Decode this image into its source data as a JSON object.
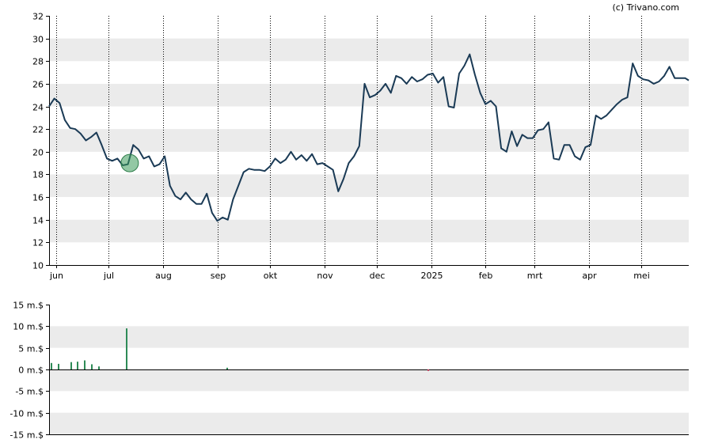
{
  "credit": "(c) Trivano.com",
  "chart_data": [
    {
      "type": "line",
      "title": "",
      "xlabel": "",
      "ylabel": "",
      "ylim": [
        10,
        32
      ],
      "yticks": [
        10,
        12,
        14,
        16,
        18,
        20,
        22,
        24,
        26,
        28,
        30,
        32
      ],
      "x_tick_labels": [
        "jun",
        "jul",
        "aug",
        "sep",
        "okt",
        "nov",
        "dec",
        "2025",
        "feb",
        "mrt",
        "apr",
        "mei"
      ],
      "x_tick_dates": [
        "2024-06-01",
        "2024-07-01",
        "2024-08-01",
        "2024-09-01",
        "2024-10-01",
        "2024-11-01",
        "2024-12-01",
        "2025-01-01",
        "2025-02-01",
        "2025-03-01",
        "2025-04-01",
        "2025-05-01"
      ],
      "x_range": [
        "2024-05-28",
        "2025-05-28"
      ],
      "grid": "horizontal bands with dotted vertical month lines",
      "line_color": "#1a3a55",
      "series": [
        {
          "dates": [
            "2024-05-28",
            "2024-05-31",
            "2024-06-03",
            "2024-06-06",
            "2024-06-09",
            "2024-06-12",
            "2024-06-15",
            "2024-06-18",
            "2024-06-21",
            "2024-06-24",
            "2024-06-27",
            "2024-06-30",
            "2024-07-03",
            "2024-07-06",
            "2024-07-09",
            "2024-07-12",
            "2024-07-15",
            "2024-07-18",
            "2024-07-21",
            "2024-07-24",
            "2024-07-27",
            "2024-07-30",
            "2024-08-02",
            "2024-08-05",
            "2024-08-08",
            "2024-08-11",
            "2024-08-14",
            "2024-08-17",
            "2024-08-20",
            "2024-08-23",
            "2024-08-26",
            "2024-08-29",
            "2024-09-01",
            "2024-09-04",
            "2024-09-07",
            "2024-09-10",
            "2024-09-13",
            "2024-09-16",
            "2024-09-19",
            "2024-09-22",
            "2024-09-25",
            "2024-09-28",
            "2024-10-01",
            "2024-10-04",
            "2024-10-07",
            "2024-10-10",
            "2024-10-13",
            "2024-10-16",
            "2024-10-19",
            "2024-10-22",
            "2024-10-25",
            "2024-10-28",
            "2024-10-31",
            "2024-11-03",
            "2024-11-06",
            "2024-11-09",
            "2024-11-12",
            "2024-11-15",
            "2024-11-18",
            "2024-11-21",
            "2024-11-24",
            "2024-11-27",
            "2024-11-30",
            "2024-12-03",
            "2024-12-06",
            "2024-12-09",
            "2024-12-12",
            "2024-12-15",
            "2024-12-18",
            "2024-12-21",
            "2024-12-24",
            "2024-12-27",
            "2024-12-30",
            "2025-01-02",
            "2025-01-05",
            "2025-01-08",
            "2025-01-11",
            "2025-01-14",
            "2025-01-17",
            "2025-01-20",
            "2025-01-23",
            "2025-01-26",
            "2025-01-29",
            "2025-02-01",
            "2025-02-04",
            "2025-02-07",
            "2025-02-10",
            "2025-02-13",
            "2025-02-16",
            "2025-02-19",
            "2025-02-22",
            "2025-02-25",
            "2025-02-28",
            "2025-03-03",
            "2025-03-06",
            "2025-03-09",
            "2025-03-12",
            "2025-03-15",
            "2025-03-18",
            "2025-03-21",
            "2025-03-24",
            "2025-03-27",
            "2025-03-30",
            "2025-04-02",
            "2025-04-05",
            "2025-04-08",
            "2025-04-11",
            "2025-04-14",
            "2025-04-17",
            "2025-04-20",
            "2025-04-23",
            "2025-04-26",
            "2025-04-29",
            "2025-05-02",
            "2025-05-05",
            "2025-05-08",
            "2025-05-11",
            "2025-05-14",
            "2025-05-17",
            "2025-05-20",
            "2025-05-23",
            "2025-05-26",
            "2025-05-28"
          ],
          "values": [
            24.0,
            24.7,
            24.3,
            22.8,
            22.1,
            22.0,
            21.6,
            21.0,
            21.3,
            21.7,
            20.6,
            19.4,
            19.2,
            19.4,
            18.8,
            18.9,
            20.6,
            20.2,
            19.4,
            19.6,
            18.7,
            18.9,
            19.6,
            17.0,
            16.1,
            15.8,
            16.4,
            15.8,
            15.4,
            15.4,
            16.3,
            14.6,
            13.9,
            14.2,
            14.0,
            15.8,
            17.0,
            18.2,
            18.5,
            18.4,
            18.4,
            18.3,
            18.7,
            19.4,
            19.0,
            19.3,
            20.0,
            19.3,
            19.7,
            19.2,
            19.8,
            18.9,
            19.0,
            18.7,
            18.4,
            16.5,
            17.6,
            19.0,
            19.6,
            20.5,
            26.0,
            24.8,
            25.0,
            25.4,
            26.0,
            25.2,
            26.7,
            26.5,
            26.0,
            26.6,
            26.2,
            26.4,
            26.8,
            26.9,
            26.1,
            26.6,
            24.0,
            23.9,
            26.9,
            27.6,
            28.6,
            26.8,
            25.2,
            24.2,
            24.5,
            24.0,
            20.3,
            20.0,
            21.8,
            20.5,
            21.5,
            21.2,
            21.2,
            21.9,
            22.0,
            22.6,
            19.4,
            19.3,
            20.6,
            20.6,
            19.6,
            19.3,
            20.4,
            20.6,
            23.2,
            22.9,
            23.2,
            23.7,
            24.2,
            24.6,
            24.8,
            27.8,
            26.7,
            26.4,
            26.3,
            26.0,
            26.2,
            26.7,
            27.5,
            26.5,
            26.5,
            26.5,
            26.3
          ]
        }
      ],
      "annotations": [
        {
          "type": "circle-highlight",
          "date": "2024-07-13",
          "value": 19.0
        }
      ]
    },
    {
      "type": "bar",
      "title": "",
      "xlabel": "",
      "ylabel": "",
      "ylim": [
        -15,
        15
      ],
      "yticks": [
        -15,
        -10,
        -5,
        0,
        5,
        10,
        15
      ],
      "ytick_labels": [
        "-15 m.$",
        "-10 m.$",
        "-5 m.$",
        "0 m.$",
        "5 m.$",
        "10 m.$",
        "15 m.$"
      ],
      "unit": "m.$",
      "x_range": [
        "2024-05-28",
        "2025-05-28"
      ],
      "bars": [
        {
          "date": "2024-05-29",
          "value": 1.5,
          "color": "#2e8b57"
        },
        {
          "date": "2024-06-02",
          "value": 1.3,
          "color": "#2e8b57"
        },
        {
          "date": "2024-06-09",
          "value": 1.7,
          "color": "#2e8b57"
        },
        {
          "date": "2024-06-13",
          "value": 1.8,
          "color": "#2e8b57"
        },
        {
          "date": "2024-06-17",
          "value": 2.1,
          "color": "#2e8b57"
        },
        {
          "date": "2024-06-21",
          "value": 1.2,
          "color": "#2e8b57"
        },
        {
          "date": "2024-06-25",
          "value": 0.7,
          "color": "#2e8b57"
        },
        {
          "date": "2024-07-11",
          "value": 9.5,
          "color": "#2e8b57"
        },
        {
          "date": "2024-09-06",
          "value": 0.4,
          "color": "#2e8b57"
        },
        {
          "date": "2024-12-30",
          "value": -0.3,
          "color": "#c0143c"
        }
      ]
    }
  ]
}
